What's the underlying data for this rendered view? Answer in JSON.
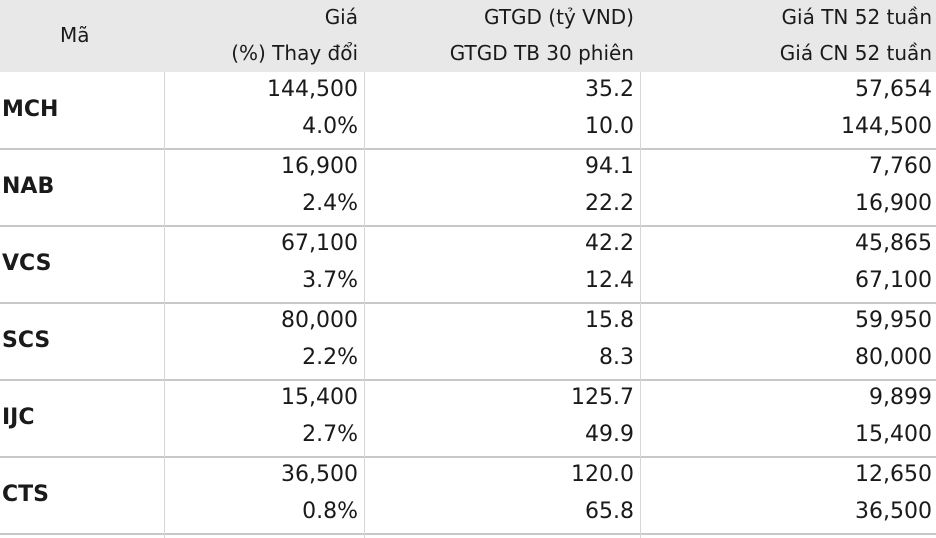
{
  "header": {
    "code": "Mã",
    "price": "Giá",
    "change": "(%) Thay đổi",
    "value": "GTGD (tỷ VND)",
    "avg_value": "GTGD TB 30 phiên",
    "low52": "Giá TN 52 tuần",
    "high52": "Giá CN 52 tuần"
  },
  "rows": [
    {
      "code": "MCH",
      "price": "144,500",
      "change": "4.0%",
      "value": "35.2",
      "avg_value": "10.0",
      "low52": "57,654",
      "high52": "144,500"
    },
    {
      "code": "NAB",
      "price": "16,900",
      "change": "2.4%",
      "value": "94.1",
      "avg_value": "22.2",
      "low52": "7,760",
      "high52": "16,900"
    },
    {
      "code": "VCS",
      "price": "67,100",
      "change": "3.7%",
      "value": "42.2",
      "avg_value": "12.4",
      "low52": "45,865",
      "high52": "67,100"
    },
    {
      "code": "SCS",
      "price": "80,000",
      "change": "2.2%",
      "value": "15.8",
      "avg_value": "8.3",
      "low52": "59,950",
      "high52": "80,000"
    },
    {
      "code": "IJC",
      "price": "15,400",
      "change": "2.7%",
      "value": "125.7",
      "avg_value": "49.9",
      "low52": "9,899",
      "high52": "15,400"
    },
    {
      "code": "CTS",
      "price": "36,500",
      "change": "0.8%",
      "value": "120.0",
      "avg_value": "65.8",
      "low52": "12,650",
      "high52": "36,500"
    }
  ]
}
